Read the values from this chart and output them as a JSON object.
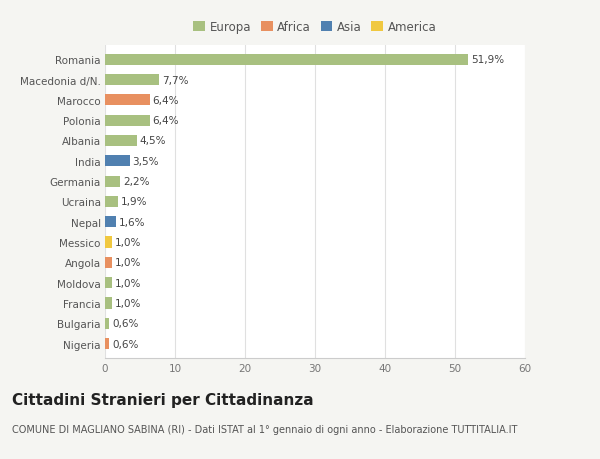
{
  "countries": [
    "Romania",
    "Macedonia d/N.",
    "Marocco",
    "Polonia",
    "Albania",
    "India",
    "Germania",
    "Ucraina",
    "Nepal",
    "Messico",
    "Angola",
    "Moldova",
    "Francia",
    "Bulgaria",
    "Nigeria"
  ],
  "values": [
    51.9,
    7.7,
    6.4,
    6.4,
    4.5,
    3.5,
    2.2,
    1.9,
    1.6,
    1.0,
    1.0,
    1.0,
    1.0,
    0.6,
    0.6
  ],
  "labels": [
    "51,9%",
    "7,7%",
    "6,4%",
    "6,4%",
    "4,5%",
    "3,5%",
    "2,2%",
    "1,9%",
    "1,6%",
    "1,0%",
    "1,0%",
    "1,0%",
    "1,0%",
    "0,6%",
    "0,6%"
  ],
  "continents": [
    "Europa",
    "Europa",
    "Africa",
    "Europa",
    "Europa",
    "Asia",
    "Europa",
    "Europa",
    "Asia",
    "America",
    "Africa",
    "Europa",
    "Europa",
    "Europa",
    "Africa"
  ],
  "continent_colors": {
    "Europa": "#a8c080",
    "Africa": "#e89060",
    "Asia": "#5080b0",
    "America": "#f0c840"
  },
  "legend_order": [
    "Europa",
    "Africa",
    "Asia",
    "America"
  ],
  "title": "Cittadini Stranieri per Cittadinanza",
  "subtitle": "COMUNE DI MAGLIANO SABINA (RI) - Dati ISTAT al 1° gennaio di ogni anno - Elaborazione TUTTITALIA.IT",
  "xlim": [
    0,
    60
  ],
  "xticks": [
    0,
    10,
    20,
    30,
    40,
    50,
    60
  ],
  "background_color": "#f5f5f2",
  "plot_bg_color": "#ffffff",
  "grid_color": "#e0e0e0",
  "title_fontsize": 11,
  "subtitle_fontsize": 7,
  "label_fontsize": 7.5,
  "tick_fontsize": 7.5,
  "legend_fontsize": 8.5,
  "bar_height": 0.55
}
